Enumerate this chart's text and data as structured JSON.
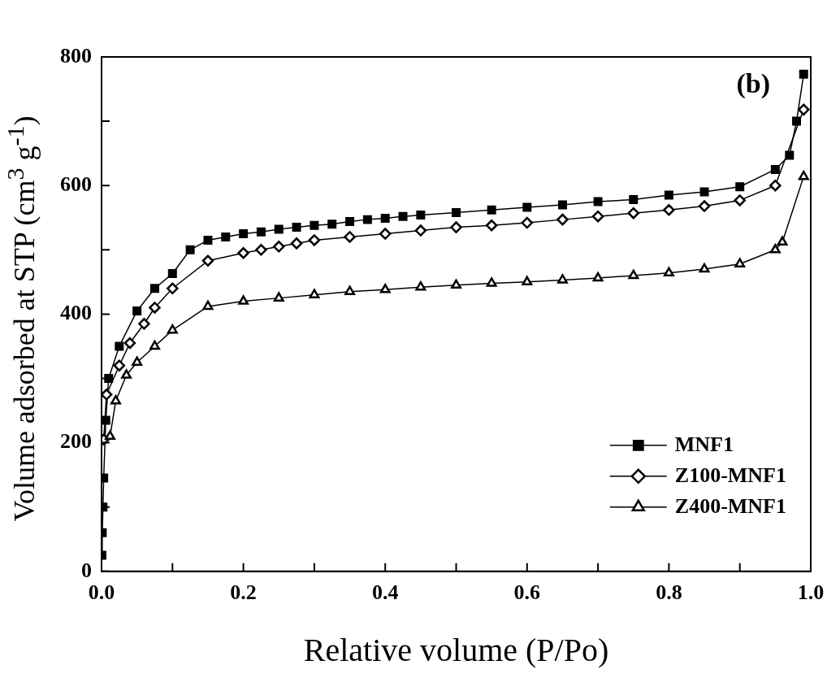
{
  "chart_data": {
    "type": "line",
    "xlabel": "Relative volume (P/Po)",
    "ylabel": "Volume adsorbed at STP (cm$^{3}$ g$^{-1}$)",
    "annotations": [
      "(b)"
    ],
    "xlim": [
      0,
      1.0
    ],
    "xticks": [
      {
        "value": 0,
        "label": "0.0"
      },
      {
        "value": 0.1,
        "label": null
      },
      0.2,
      {
        "value": 0.3,
        "label": null
      },
      0.4,
      {
        "value": 0.5,
        "label": null
      },
      0.6,
      {
        "value": 0.7,
        "label": null
      },
      0.8,
      {
        "value": 0.9,
        "label": null
      },
      {
        "value": 1.0,
        "label": "1.0"
      }
    ],
    "ylim": [
      0,
      800
    ],
    "yticks": [
      0,
      {
        "value": 100,
        "label": null
      },
      200,
      {
        "value": 300,
        "label": null
      },
      400,
      {
        "value": 500,
        "label": null
      },
      600,
      {
        "value": 700,
        "label": null
      },
      800
    ],
    "grid": false,
    "legend": "bottom right",
    "line_style": "solid",
    "series": [
      {
        "name": "MNF1",
        "color": "#000000",
        "marker": "square",
        "x": [
          0.0005,
          0.001,
          0.002,
          0.003,
          0.006,
          0.01,
          0.025,
          0.05,
          0.075,
          0.1,
          0.125,
          0.15,
          0.175,
          0.2,
          0.225,
          0.25,
          0.275,
          0.3,
          0.325,
          0.35,
          0.375,
          0.4,
          0.425,
          0.45,
          0.5,
          0.55,
          0.6,
          0.65,
          0.7,
          0.75,
          0.8,
          0.85,
          0.9,
          0.95,
          0.97,
          0.98,
          0.99
        ],
        "values": [
          25,
          60,
          100,
          145,
          235,
          300,
          350,
          405,
          440,
          463,
          500,
          515,
          520,
          525,
          528,
          532,
          535,
          538,
          540,
          544,
          547,
          549,
          552,
          554,
          558,
          562,
          566,
          570,
          575,
          578,
          585,
          590,
          598,
          625,
          647,
          700,
          773
        ]
      },
      {
        "name": "Z100-MNF1",
        "color": "#000000",
        "marker": "diamond",
        "x": [
          0.003,
          0.007,
          0.025,
          0.04,
          0.06,
          0.075,
          0.1,
          0.15,
          0.2,
          0.225,
          0.25,
          0.275,
          0.3,
          0.35,
          0.4,
          0.45,
          0.5,
          0.55,
          0.6,
          0.65,
          0.7,
          0.75,
          0.8,
          0.85,
          0.9,
          0.95,
          0.99
        ],
        "values": [
          205,
          275,
          320,
          355,
          385,
          410,
          440,
          483,
          495,
          500,
          505,
          510,
          515,
          520,
          525,
          530,
          535,
          538,
          542,
          547,
          552,
          557,
          562,
          568,
          577,
          600,
          718
        ]
      },
      {
        "name": "Z400-MNF1",
        "color": "#000000",
        "marker": "triangle",
        "x": [
          0.012,
          0.02,
          0.035,
          0.05,
          0.075,
          0.1,
          0.15,
          0.2,
          0.25,
          0.3,
          0.35,
          0.4,
          0.45,
          0.5,
          0.55,
          0.6,
          0.65,
          0.7,
          0.75,
          0.8,
          0.85,
          0.9,
          0.95,
          0.96,
          0.99
        ],
        "values": [
          210,
          265,
          305,
          325,
          350,
          375,
          412,
          420,
          425,
          430,
          435,
          438,
          442,
          445,
          448,
          450,
          453,
          456,
          460,
          464,
          470,
          478,
          500,
          512,
          614
        ]
      }
    ]
  }
}
